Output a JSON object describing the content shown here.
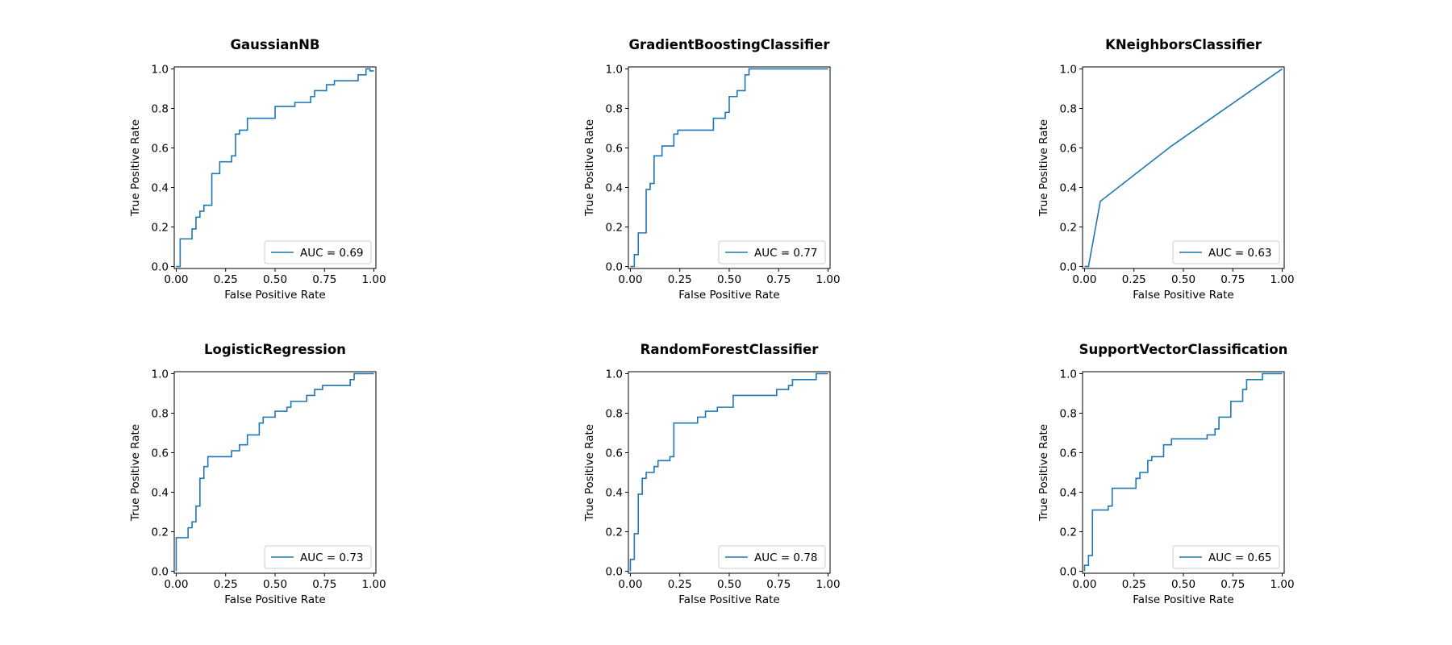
{
  "colors": {
    "curve": "#1f77b4",
    "axes": "#000000",
    "background": "#ffffff",
    "legend_border": "#cccccc"
  },
  "chart_data": [
    {
      "type": "line",
      "title": "GaussianNB",
      "xlabel": "False Positive Rate",
      "ylabel": "True Positive Rate",
      "xlim": [
        0,
        1
      ],
      "ylim": [
        0,
        1
      ],
      "xticks": [
        "0.00",
        "0.25",
        "0.50",
        "0.75",
        "1.00"
      ],
      "yticks": [
        "0.0",
        "0.2",
        "0.4",
        "0.6",
        "0.8",
        "1.0"
      ],
      "grid": false,
      "legend": "lower-right",
      "series": [
        {
          "name": "AUC = 0.69",
          "step": true,
          "x": [
            0,
            0.02,
            0.02,
            0.08,
            0.08,
            0.1,
            0.1,
            0.12,
            0.12,
            0.14,
            0.14,
            0.18,
            0.18,
            0.22,
            0.22,
            0.28,
            0.28,
            0.3,
            0.3,
            0.32,
            0.32,
            0.36,
            0.36,
            0.5,
            0.5,
            0.6,
            0.6,
            0.68,
            0.68,
            0.7,
            0.7,
            0.76,
            0.76,
            0.8,
            0.8,
            0.92,
            0.92,
            0.96,
            0.96,
            0.98,
            0.98,
            1.0
          ],
          "y": [
            0,
            0,
            0.14,
            0.14,
            0.19,
            0.19,
            0.25,
            0.25,
            0.28,
            0.28,
            0.31,
            0.31,
            0.47,
            0.47,
            0.53,
            0.53,
            0.56,
            0.56,
            0.67,
            0.67,
            0.69,
            0.69,
            0.75,
            0.75,
            0.81,
            0.81,
            0.83,
            0.83,
            0.86,
            0.86,
            0.89,
            0.89,
            0.92,
            0.92,
            0.94,
            0.94,
            0.97,
            0.97,
            1.0,
            1.0,
            0.99,
            0.99
          ]
        }
      ]
    },
    {
      "type": "line",
      "title": "GradientBoostingClassifier",
      "xlabel": "False Positive Rate",
      "ylabel": "True Positive Rate",
      "xlim": [
        0,
        1
      ],
      "ylim": [
        0,
        1
      ],
      "xticks": [
        "0.00",
        "0.25",
        "0.50",
        "0.75",
        "1.00"
      ],
      "yticks": [
        "0.0",
        "0.2",
        "0.4",
        "0.6",
        "0.8",
        "1.0"
      ],
      "grid": false,
      "legend": "lower-right",
      "series": [
        {
          "name": "AUC = 0.77",
          "step": true,
          "x": [
            0,
            0.02,
            0.02,
            0.04,
            0.04,
            0.08,
            0.08,
            0.1,
            0.1,
            0.12,
            0.12,
            0.16,
            0.16,
            0.22,
            0.22,
            0.24,
            0.24,
            0.42,
            0.42,
            0.48,
            0.48,
            0.5,
            0.5,
            0.54,
            0.54,
            0.58,
            0.58,
            0.6,
            0.6,
            1.0
          ],
          "y": [
            0,
            0,
            0.06,
            0.06,
            0.17,
            0.17,
            0.39,
            0.39,
            0.42,
            0.42,
            0.56,
            0.56,
            0.61,
            0.61,
            0.67,
            0.67,
            0.69,
            0.69,
            0.75,
            0.75,
            0.78,
            0.78,
            0.86,
            0.86,
            0.89,
            0.89,
            0.97,
            0.97,
            1.0,
            1.0
          ]
        }
      ]
    },
    {
      "type": "line",
      "title": "KNeighborsClassifier",
      "xlabel": "False Positive Rate",
      "ylabel": "True Positive Rate",
      "xlim": [
        0,
        1
      ],
      "ylim": [
        0,
        1
      ],
      "xticks": [
        "0.00",
        "0.25",
        "0.50",
        "0.75",
        "1.00"
      ],
      "yticks": [
        "0.0",
        "0.2",
        "0.4",
        "0.6",
        "0.8",
        "1.0"
      ],
      "grid": false,
      "legend": "lower-right",
      "series": [
        {
          "name": "AUC = 0.63",
          "step": false,
          "x": [
            0,
            0.02,
            0.08,
            0.44,
            1.0
          ],
          "y": [
            0,
            0,
            0.33,
            0.61,
            1.0
          ]
        }
      ]
    },
    {
      "type": "line",
      "title": "LogisticRegression",
      "xlabel": "False Positive Rate",
      "ylabel": "True Positive Rate",
      "xlim": [
        0,
        1
      ],
      "ylim": [
        0,
        1
      ],
      "xticks": [
        "0.00",
        "0.25",
        "0.50",
        "0.75",
        "1.00"
      ],
      "yticks": [
        "0.0",
        "0.2",
        "0.4",
        "0.6",
        "0.8",
        "1.0"
      ],
      "grid": false,
      "legend": "lower-right",
      "series": [
        {
          "name": "AUC = 0.73",
          "step": true,
          "x": [
            0,
            0,
            0.06,
            0.06,
            0.08,
            0.08,
            0.1,
            0.1,
            0.12,
            0.12,
            0.14,
            0.14,
            0.16,
            0.16,
            0.28,
            0.28,
            0.32,
            0.32,
            0.36,
            0.36,
            0.42,
            0.42,
            0.44,
            0.44,
            0.5,
            0.5,
            0.56,
            0.56,
            0.58,
            0.58,
            0.66,
            0.66,
            0.7,
            0.7,
            0.74,
            0.74,
            0.88,
            0.88,
            0.9,
            0.9,
            1.0
          ],
          "y": [
            0,
            0.17,
            0.17,
            0.22,
            0.22,
            0.25,
            0.25,
            0.33,
            0.33,
            0.47,
            0.47,
            0.53,
            0.53,
            0.58,
            0.58,
            0.61,
            0.61,
            0.64,
            0.64,
            0.69,
            0.69,
            0.75,
            0.75,
            0.78,
            0.78,
            0.81,
            0.81,
            0.83,
            0.83,
            0.86,
            0.86,
            0.89,
            0.89,
            0.92,
            0.92,
            0.94,
            0.94,
            0.97,
            0.97,
            1.0,
            1.0
          ]
        }
      ]
    },
    {
      "type": "line",
      "title": "RandomForestClassifier",
      "xlabel": "False Positive Rate",
      "ylabel": "True Positive Rate",
      "xlim": [
        0,
        1
      ],
      "ylim": [
        0,
        1
      ],
      "xticks": [
        "0.00",
        "0.25",
        "0.50",
        "0.75",
        "1.00"
      ],
      "yticks": [
        "0.0",
        "0.2",
        "0.4",
        "0.6",
        "0.8",
        "1.0"
      ],
      "grid": false,
      "legend": "lower-right",
      "series": [
        {
          "name": "AUC = 0.78",
          "step": true,
          "x": [
            0,
            0,
            0.02,
            0.02,
            0.04,
            0.04,
            0.06,
            0.06,
            0.08,
            0.08,
            0.12,
            0.12,
            0.14,
            0.14,
            0.2,
            0.2,
            0.22,
            0.22,
            0.34,
            0.34,
            0.38,
            0.38,
            0.44,
            0.44,
            0.52,
            0.52,
            0.74,
            0.74,
            0.8,
            0.8,
            0.82,
            0.82,
            0.94,
            0.94,
            1.0
          ],
          "y": [
            0,
            0.06,
            0.06,
            0.19,
            0.19,
            0.39,
            0.39,
            0.47,
            0.47,
            0.5,
            0.5,
            0.53,
            0.53,
            0.56,
            0.56,
            0.58,
            0.58,
            0.75,
            0.75,
            0.78,
            0.78,
            0.81,
            0.81,
            0.83,
            0.83,
            0.89,
            0.89,
            0.92,
            0.92,
            0.94,
            0.94,
            0.97,
            0.97,
            1.0,
            1.0
          ]
        }
      ]
    },
    {
      "type": "line",
      "title": "SupportVectorClassification",
      "xlabel": "False Positive Rate",
      "ylabel": "True Positive Rate",
      "xlim": [
        0,
        1
      ],
      "ylim": [
        0,
        1
      ],
      "xticks": [
        "0.00",
        "0.25",
        "0.50",
        "0.75",
        "1.00"
      ],
      "yticks": [
        "0.0",
        "0.2",
        "0.4",
        "0.6",
        "0.8",
        "1.0"
      ],
      "grid": false,
      "legend": "lower-right",
      "series": [
        {
          "name": "AUC = 0.65",
          "step": true,
          "x": [
            0,
            0,
            0.02,
            0.02,
            0.04,
            0.04,
            0.12,
            0.12,
            0.14,
            0.14,
            0.26,
            0.26,
            0.28,
            0.28,
            0.32,
            0.32,
            0.34,
            0.34,
            0.4,
            0.4,
            0.44,
            0.44,
            0.62,
            0.62,
            0.66,
            0.66,
            0.68,
            0.68,
            0.74,
            0.74,
            0.8,
            0.8,
            0.82,
            0.82,
            0.9,
            0.9,
            1.0
          ],
          "y": [
            0,
            0.03,
            0.03,
            0.08,
            0.08,
            0.31,
            0.31,
            0.33,
            0.33,
            0.42,
            0.42,
            0.47,
            0.47,
            0.5,
            0.5,
            0.56,
            0.56,
            0.58,
            0.58,
            0.64,
            0.64,
            0.67,
            0.67,
            0.69,
            0.69,
            0.72,
            0.72,
            0.78,
            0.78,
            0.86,
            0.86,
            0.92,
            0.92,
            0.97,
            0.97,
            1.0,
            1.0
          ]
        }
      ]
    }
  ]
}
